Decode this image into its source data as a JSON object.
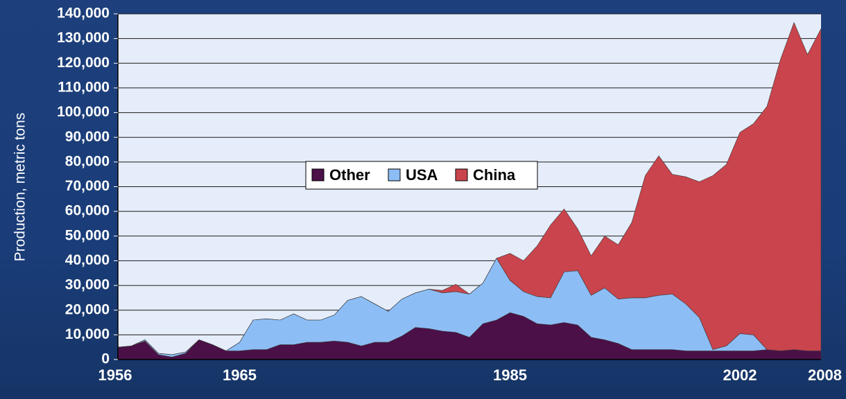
{
  "chart_data": {
    "type": "area",
    "stacked": true,
    "ylabel": "Production, metric tons",
    "xlabel": "",
    "ylim": [
      0,
      140000
    ],
    "xlim": [
      1956,
      2008
    ],
    "y_ticks": [
      0,
      10000,
      20000,
      30000,
      40000,
      50000,
      60000,
      70000,
      80000,
      90000,
      100000,
      110000,
      120000,
      130000,
      140000
    ],
    "y_tick_labels": [
      "0",
      "10,000",
      "20,000",
      "30,000",
      "40,000",
      "50,000",
      "60,000",
      "70,000",
      "80,000",
      "90,000",
      "100,000",
      "110,000",
      "120,000",
      "130,000",
      "140,000"
    ],
    "x_ticks": [
      1956,
      1965,
      1985,
      2002,
      2008
    ],
    "x_tick_labels": [
      "1956",
      "1965",
      "1985",
      "2002",
      "2008"
    ],
    "grid": "horizontal",
    "legend_position": "center-left",
    "x": [
      1956,
      1957,
      1958,
      1959,
      1960,
      1961,
      1962,
      1963,
      1964,
      1965,
      1966,
      1967,
      1968,
      1969,
      1970,
      1971,
      1972,
      1973,
      1974,
      1975,
      1976,
      1977,
      1978,
      1979,
      1980,
      1981,
      1982,
      1983,
      1984,
      1985,
      1986,
      1987,
      1988,
      1989,
      1990,
      1991,
      1992,
      1993,
      1994,
      1995,
      1996,
      1997,
      1998,
      1999,
      2000,
      2001,
      2002,
      2003,
      2004,
      2005,
      2006,
      2007,
      2008
    ],
    "series": [
      {
        "name": "Other",
        "color": "#4b1048",
        "values": [
          5000,
          5500,
          7500,
          2000,
          1000,
          2500,
          8000,
          6000,
          3500,
          3500,
          4000,
          4000,
          6000,
          6000,
          7000,
          7000,
          7500,
          7000,
          5500,
          7000,
          7000,
          9500,
          13000,
          12500,
          11500,
          11000,
          9000,
          14500,
          16000,
          19000,
          17500,
          14500,
          14000,
          15000,
          14000,
          9000,
          8000,
          6500,
          4000,
          4000,
          4000,
          4000,
          3500,
          3500,
          3500,
          3500,
          3500,
          3500,
          4000,
          3500,
          4000,
          3500,
          3500
        ]
      },
      {
        "name": "USA",
        "color": "#8dbdf5",
        "values": [
          0,
          0,
          500,
          500,
          1000,
          500,
          0,
          0,
          0,
          3500,
          12000,
          12500,
          10000,
          12500,
          9000,
          9000,
          10500,
          17000,
          20000,
          15500,
          12500,
          15000,
          14000,
          16000,
          15500,
          16500,
          17500,
          16500,
          25000,
          13000,
          10000,
          11000,
          11000,
          20500,
          22000,
          17000,
          21000,
          18000,
          21000,
          21000,
          22000,
          22500,
          19000,
          13500,
          500,
          2000,
          7000,
          6500,
          0,
          0,
          0,
          0,
          0
        ]
      },
      {
        "name": "China",
        "color": "#c9444c",
        "values": [
          0,
          0,
          0,
          0,
          0,
          0,
          0,
          0,
          0,
          0,
          0,
          0,
          0,
          0,
          0,
          0,
          0,
          0,
          0,
          0,
          0,
          0,
          0,
          0,
          1000,
          3000,
          0,
          0,
          0,
          11000,
          12500,
          20500,
          29500,
          25500,
          17000,
          16000,
          21000,
          22000,
          30500,
          49500,
          56500,
          48500,
          51500,
          55000,
          70500,
          73500,
          81500,
          85500,
          98500,
          118000,
          132500,
          120000,
          130500
        ]
      }
    ]
  }
}
